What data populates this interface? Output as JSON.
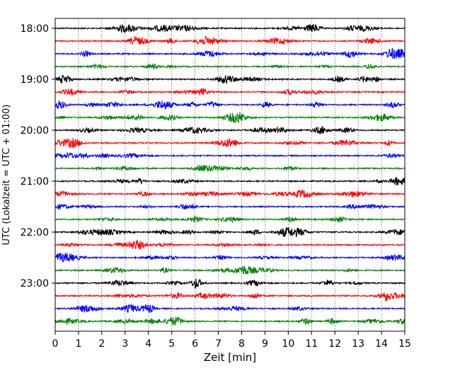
{
  "chart_data": {
    "type": "line",
    "title": "",
    "xlabel": "Zeit  [min]",
    "ylabel": "UTC (Lokalzeit = UTC + 01:00)",
    "xlim": [
      0,
      15
    ],
    "x_ticks": [
      0,
      1,
      2,
      3,
      4,
      5,
      6,
      7,
      8,
      9,
      10,
      11,
      12,
      13,
      14,
      15
    ],
    "y_tick_labels": [
      "18:00",
      "19:00",
      "20:00",
      "21:00",
      "22:00",
      "23:00"
    ],
    "grid": "vertical dotted lines at each minute",
    "trace_count": 24,
    "trace_minutes": 15,
    "first_trace_time": "18:00",
    "last_trace_time": "23:45",
    "trace_colors": [
      "#000000",
      "#ff0000",
      "#0000ff",
      "#008000"
    ],
    "trace_color_names": [
      "black",
      "red",
      "blue",
      "green"
    ]
  }
}
